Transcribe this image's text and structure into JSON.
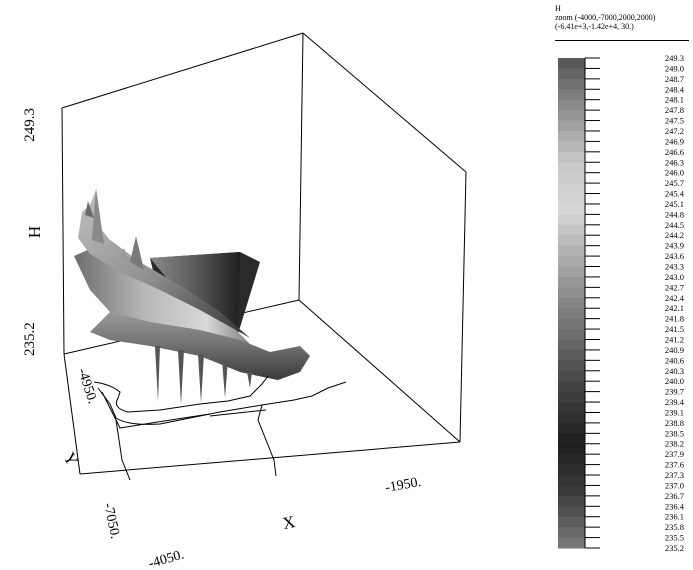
{
  "legend": {
    "variable": "H",
    "zoom_line": "zoom (-4000,-7000,2000,2000)",
    "view_line": "(-6.41e+3,-1.42e+4, 30.)"
  },
  "chart_data": {
    "type": "surface3d",
    "variable": "H",
    "zlabel": "H",
    "xlabel": "X",
    "ylabel": "Y",
    "zlim": [
      235.2,
      249.3
    ],
    "z_tick_labels": [
      "235.2",
      "249.3"
    ],
    "x_tick_labels": [
      "-4050.",
      "-1950."
    ],
    "y_tick_labels": [
      "-4950.",
      "-7050."
    ],
    "colorbar": {
      "min": 235.2,
      "max": 249.3,
      "labels": [
        "249.3",
        "249.0",
        "248.7",
        "248.4",
        "248.1",
        "247.8",
        "247.5",
        "247.2",
        "246.9",
        "246.6",
        "246.3",
        "246.0",
        "245.7",
        "245.4",
        "245.1",
        "244.8",
        "244.5",
        "244.2",
        "243.9",
        "243.6",
        "243.3",
        "243.0",
        "242.7",
        "242.4",
        "242.1",
        "241.8",
        "241.5",
        "241.2",
        "240.9",
        "240.6",
        "240.3",
        "240.0",
        "239.7",
        "239.4",
        "239.1",
        "238.8",
        "238.5",
        "238.2",
        "237.9",
        "237.6",
        "237.3",
        "237.0",
        "236.7",
        "236.4",
        "236.1",
        "235.8",
        "235.5",
        "235.2"
      ]
    },
    "colors": {
      "high": "#606060",
      "mid_light": "#c8c8c8",
      "low_dark": "#1e1e1e",
      "bottom": "#787878"
    }
  }
}
